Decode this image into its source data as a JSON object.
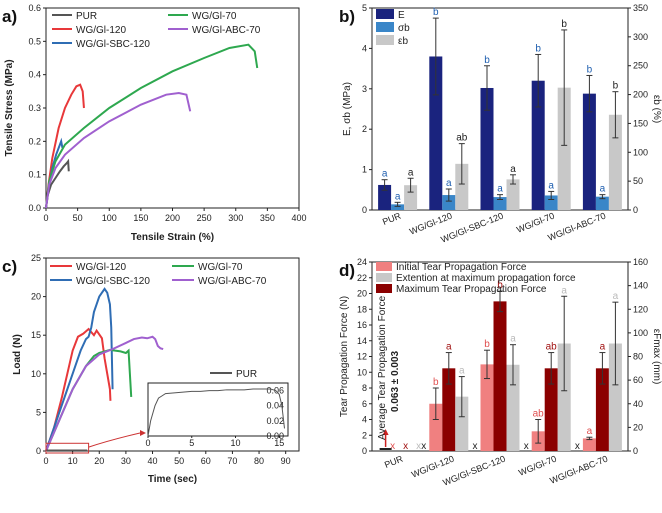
{
  "chart_data": [
    {
      "id": "a",
      "type": "line",
      "panel_label": "a)",
      "xlabel": "Tensile Strain (%)",
      "ylabel": "Tensile Stress (MPa)",
      "xlim": [
        0,
        400
      ],
      "ylim": [
        0,
        0.6
      ],
      "xticks": [
        "0",
        "50",
        "100",
        "150",
        "200",
        "250",
        "300",
        "350",
        "400"
      ],
      "yticks": [
        "0.0",
        "0.1",
        "0.2",
        "0.3",
        "0.4",
        "0.5",
        "0.6"
      ],
      "series": [
        {
          "name": "PUR",
          "color": "#555555",
          "x": [
            0,
            3,
            8,
            15,
            22,
            28,
            33,
            35,
            36
          ],
          "y": [
            0,
            0.04,
            0.07,
            0.09,
            0.11,
            0.125,
            0.135,
            0.14,
            0.11
          ]
        },
        {
          "name": "WG/Gl-120",
          "color": "#e8383a",
          "x": [
            0,
            4,
            10,
            20,
            30,
            40,
            48,
            54,
            58,
            60
          ],
          "y": [
            0,
            0.07,
            0.15,
            0.24,
            0.3,
            0.34,
            0.365,
            0.37,
            0.35,
            0.3
          ]
        },
        {
          "name": "WG/Gl-SBC-120",
          "color": "#2f6db4",
          "x": [
            0,
            4,
            10,
            16,
            20,
            24,
            26
          ],
          "y": [
            0,
            0.06,
            0.12,
            0.16,
            0.18,
            0.2,
            0.18
          ]
        },
        {
          "name": "WG/Gl-70",
          "color": "#2ea84f",
          "x": [
            0,
            5,
            15,
            30,
            60,
            100,
            150,
            200,
            250,
            290,
            320,
            330,
            334
          ],
          "y": [
            0,
            0.08,
            0.14,
            0.19,
            0.24,
            0.3,
            0.36,
            0.41,
            0.45,
            0.48,
            0.49,
            0.47,
            0.42
          ]
        },
        {
          "name": "WG/Gl-ABC-70",
          "color": "#a060cf",
          "x": [
            0,
            5,
            15,
            30,
            60,
            100,
            150,
            190,
            210,
            222,
            228
          ],
          "y": [
            0,
            0.07,
            0.12,
            0.16,
            0.21,
            0.26,
            0.31,
            0.34,
            0.345,
            0.34,
            0.29
          ]
        }
      ]
    },
    {
      "id": "b",
      "type": "bar",
      "panel_label": "b)",
      "ylabel": "E, σb (MPa)",
      "ylabel_right": "εb (%)",
      "ylim": [
        0,
        5
      ],
      "ylim_right": [
        0,
        350
      ],
      "yticks": [
        "0",
        "1",
        "2",
        "3",
        "4",
        "5"
      ],
      "yticks_right": [
        "0",
        "50",
        "100",
        "150",
        "200",
        "250",
        "300",
        "350"
      ],
      "categories": [
        "PUR",
        "WG/Gl-120",
        "WG/Gl-SBC-120",
        "WG/Gl-70",
        "WG/Gl-ABC-70"
      ],
      "legend": [
        "E",
        "σb",
        "εb"
      ],
      "series": [
        {
          "name": "E",
          "color": "#1a237e",
          "values": [
            0.62,
            3.8,
            3.02,
            3.2,
            2.88
          ],
          "errors": [
            0.13,
            0.95,
            0.55,
            0.65,
            0.45
          ],
          "labels": [
            "a",
            "b",
            "b",
            "b",
            "b"
          ],
          "label_color": "#1f5fb0"
        },
        {
          "name": "σb",
          "color": "#3a86c8",
          "values": [
            0.14,
            0.37,
            0.32,
            0.36,
            0.33
          ],
          "errors": [
            0.05,
            0.15,
            0.06,
            0.1,
            0.05
          ],
          "labels": [
            "a",
            "a",
            "a",
            "a",
            "a"
          ],
          "label_color": "#1f5fb0"
        },
        {
          "name": "εb",
          "color": "#c8c8c8",
          "values": [
            43,
            80,
            53,
            212,
            165
          ],
          "errors": [
            12,
            35,
            8,
            100,
            40
          ],
          "labels": [
            "a",
            "ab",
            "a",
            "b",
            "b"
          ],
          "label_color": "#222222",
          "axis": "right"
        }
      ]
    },
    {
      "id": "c",
      "type": "line",
      "panel_label": "c)",
      "xlabel": "Time (sec)",
      "ylabel": "Load (N)",
      "xlim": [
        0,
        95
      ],
      "ylim": [
        0,
        25
      ],
      "xticks": [
        "0",
        "10",
        "20",
        "30",
        "40",
        "50",
        "60",
        "70",
        "80",
        "90"
      ],
      "yticks": [
        "0",
        "5",
        "10",
        "15",
        "20",
        "25"
      ],
      "series": [
        {
          "name": "WG/Gl-120",
          "color": "#e8383a",
          "x": [
            0,
            3,
            6,
            8,
            10,
            12,
            14,
            16,
            17,
            18,
            19,
            20,
            21,
            22,
            23,
            24,
            24.2
          ],
          "y": [
            0,
            3,
            7,
            10,
            13,
            14.8,
            15.2,
            15.8,
            15.4,
            15.0,
            15.6,
            15.1,
            14.6,
            12.0,
            10.0,
            8.0,
            6.5
          ]
        },
        {
          "name": "WG/Gl-SBC-120",
          "color": "#2f6db4",
          "x": [
            0,
            2,
            5,
            8,
            11,
            13,
            15,
            16,
            17,
            18,
            19,
            20,
            21,
            22,
            23,
            24,
            24.5,
            25
          ],
          "y": [
            0,
            2,
            5,
            8,
            11,
            13,
            14.5,
            14.8,
            16,
            18,
            19,
            20,
            20.5,
            21,
            20.5,
            19,
            16,
            8
          ]
        },
        {
          "name": "WG/Gl-70",
          "color": "#2ea84f",
          "x": [
            0,
            5,
            10,
            15,
            18,
            20,
            22,
            24,
            26,
            28,
            30,
            31,
            31.5,
            32
          ],
          "y": [
            0,
            4,
            8,
            11,
            12.3,
            12.7,
            12.9,
            13.1,
            13.0,
            12.9,
            12.7,
            13.0,
            10.0,
            7.0
          ]
        },
        {
          "name": "WG/Gl-ABC-70",
          "color": "#a060cf",
          "x": [
            0,
            5,
            10,
            15,
            20,
            25,
            30,
            33,
            36,
            38,
            40,
            41,
            42,
            43,
            44
          ],
          "y": [
            0,
            4,
            8,
            11,
            12.5,
            13.2,
            14.0,
            14.5,
            14.7,
            14.6,
            14.8,
            14.5,
            13.6,
            13.3,
            13.2
          ]
        }
      ],
      "inset": {
        "legend": "PUR",
        "xlim": [
          0,
          16
        ],
        "ylim": [
          0,
          0.07
        ],
        "xticks": [
          "0",
          "5",
          "10",
          "15"
        ],
        "yticks": [
          "0.00",
          "0.02",
          "0.04",
          "0.06"
        ],
        "x": [
          0,
          0.3,
          0.8,
          1.2,
          1.6,
          2,
          3,
          4,
          5,
          6,
          7,
          8,
          9,
          10,
          11,
          12,
          13,
          14,
          14.6,
          15,
          15.3,
          15.6
        ],
        "y": [
          0,
          0.02,
          0.04,
          0.05,
          0.053,
          0.056,
          0.057,
          0.058,
          0.059,
          0.059,
          0.06,
          0.06,
          0.061,
          0.061,
          0.061,
          0.062,
          0.062,
          0.062,
          0.06,
          0.055,
          0.04,
          0.01
        ]
      }
    },
    {
      "id": "d",
      "type": "bar",
      "panel_label": "d)",
      "ylabel": "Tear Propagation Force (N)",
      "ylabel_right": "εFmax (mm)",
      "ylim": [
        0,
        24
      ],
      "ylim_right": [
        0,
        160
      ],
      "yticks": [
        "0",
        "2",
        "4",
        "6",
        "8",
        "10",
        "12",
        "14",
        "16",
        "18",
        "20",
        "22",
        "24"
      ],
      "yticks_right": [
        "0",
        "20",
        "40",
        "60",
        "80",
        "100",
        "120",
        "140",
        "160"
      ],
      "categories": [
        "PUR",
        "WG/Gl-120",
        "WG/Gl-SBC-120",
        "WG/Gl-70",
        "WG/Gl-ABC-70"
      ],
      "legend": [
        "Initial Tear Propagation Force",
        "Extention at maximum propagation force",
        "Maximum Tear Propagation Force"
      ],
      "pur_annotation": [
        "Average Tear Propagation Force",
        "0.063 ± 0.003"
      ],
      "missing_marker": "x",
      "series": [
        {
          "name": "Initial Tear Propagation Force",
          "color": "#f08080",
          "values": [
            0,
            6.0,
            11.0,
            2.5,
            1.6
          ],
          "errors": [
            0,
            2.0,
            1.8,
            1.5,
            0.15
          ],
          "labels": [
            "x",
            "b",
            "b",
            "ab",
            "a"
          ],
          "label_color": "#e05050"
        },
        {
          "name": "Maximum Tear Propagation Force",
          "color": "#8b0000",
          "values": [
            0,
            10.5,
            19.0,
            10.5,
            10.5
          ],
          "errors": [
            0,
            2.0,
            1.3,
            2.0,
            2.0
          ],
          "labels": [
            "x",
            "a",
            "b",
            "ab",
            "a"
          ],
          "label_color": "#a01010"
        },
        {
          "name": "Extention at maximum propagation force",
          "color": "#c8c8c8",
          "values": [
            0,
            46,
            73,
            91,
            91
          ],
          "errors": [
            0,
            17,
            17,
            40,
            35
          ],
          "labels": [
            "x",
            "a",
            "a",
            "a",
            "a"
          ],
          "label_color": "#bbbbbb",
          "axis": "right"
        }
      ]
    }
  ]
}
